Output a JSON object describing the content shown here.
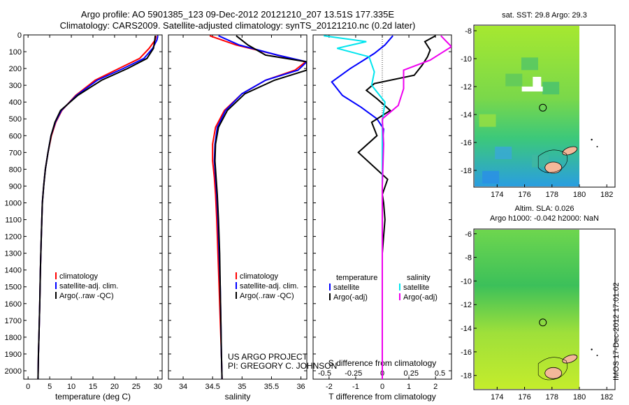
{
  "header": {
    "line1": "Argo profile: AO 5901385_123 09-Dec-2012 20121210_207 13.51S 177.335E",
    "line2": "Climatology: CARS2009. Satellite-adjusted climatology: synTS_20121210.nc (0.2d later)"
  },
  "stamp": "IMOS 17-Dec-2012 17:01:02",
  "project_note": [
    "US ARGO PROJECT",
    "PI: GREGORY C. JOHNSON"
  ],
  "colors": {
    "climatology": "#ff0000",
    "satellite": "#0000ff",
    "argo": "#000000",
    "sal_satellite": "#00e5ee",
    "sal_argo": "#ee00ee"
  },
  "chart_data": [
    {
      "type": "line",
      "xlabel": "temperature (deg C)",
      "ylabel": "",
      "xlim": [
        -1,
        31
      ],
      "ylim": [
        2050,
        0
      ],
      "xticks": [
        0,
        5,
        10,
        15,
        20,
        25,
        30
      ],
      "yticks": [
        0,
        100,
        200,
        300,
        400,
        500,
        600,
        700,
        800,
        900,
        1000,
        1100,
        1200,
        1300,
        1400,
        1500,
        1600,
        1700,
        1800,
        1900,
        2000
      ],
      "legend": [
        "climatology",
        "satellite-adj. clim.",
        "Argo(..raw -QC)"
      ],
      "legend_position": "lower-center",
      "series": [
        {
          "name": "climatology",
          "color": "#ff0000",
          "x": [
            29.6,
            29.4,
            28.0,
            25.8,
            21.0,
            15.5,
            11.0,
            7.8,
            6.4,
            5.4,
            4.6,
            4.0,
            3.6,
            3.3,
            3.05,
            2.85,
            2.7,
            2.6,
            2.5,
            2.4,
            2.3
          ],
          "y": [
            5,
            30,
            80,
            140,
            200,
            270,
            360,
            450,
            520,
            600,
            700,
            800,
            900,
            1000,
            1200,
            1400,
            1600,
            1700,
            1800,
            1900,
            2050
          ]
        },
        {
          "name": "satellite-adj. clim.",
          "color": "#0000ff",
          "x": [
            30.0,
            29.8,
            28.8,
            26.8,
            22.0,
            16.0,
            11.2,
            7.7,
            6.3,
            5.3,
            4.6,
            4.0,
            3.6,
            3.3,
            3.05,
            2.85,
            2.7,
            2.6,
            2.5,
            2.4,
            2.3
          ],
          "y": [
            5,
            30,
            80,
            140,
            200,
            270,
            360,
            450,
            520,
            600,
            700,
            800,
            900,
            1000,
            1200,
            1400,
            1600,
            1700,
            1800,
            1900,
            2050
          ]
        },
        {
          "name": "Argo(..raw -QC)",
          "color": "#000000",
          "x": [
            29.4,
            29.3,
            29.0,
            27.5,
            23.0,
            17.0,
            11.5,
            7.5,
            6.2,
            5.3,
            4.6,
            4.0,
            3.6,
            3.3,
            3.05,
            2.85,
            2.7,
            2.6,
            2.5,
            2.4,
            2.3
          ],
          "y": [
            5,
            30,
            80,
            140,
            200,
            270,
            360,
            450,
            520,
            600,
            700,
            800,
            900,
            1000,
            1200,
            1400,
            1600,
            1700,
            1800,
            1900,
            2050
          ]
        }
      ]
    },
    {
      "type": "line",
      "xlabel": "salinity",
      "xlim": [
        33.75,
        36.1
      ],
      "ylim": [
        2050,
        0
      ],
      "xticks": [
        34,
        34.5,
        35,
        35.5,
        36
      ],
      "legend": [
        "climatology",
        "satellite-adj. clim.",
        "Argo(..raw -QC)"
      ],
      "legend_position": "lower-center",
      "series": [
        {
          "name": "climatology",
          "color": "#ff0000",
          "x": [
            34.45,
            34.9,
            35.6,
            36.08,
            35.9,
            35.4,
            35.0,
            34.7,
            34.55,
            34.5,
            34.5,
            34.53,
            34.55,
            34.57,
            34.59,
            34.61,
            34.63,
            34.65,
            34.66
          ],
          "y": [
            5,
            60,
            120,
            160,
            210,
            270,
            350,
            450,
            550,
            650,
            750,
            850,
            950,
            1100,
            1300,
            1500,
            1700,
            1900,
            2050
          ]
        },
        {
          "name": "satellite-adj. clim.",
          "color": "#0000ff",
          "x": [
            34.6,
            34.95,
            35.6,
            36.1,
            35.95,
            35.4,
            35.0,
            34.72,
            34.58,
            34.54,
            34.53,
            34.55,
            34.57,
            34.59,
            34.61,
            34.63,
            34.64,
            34.65,
            34.66
          ],
          "y": [
            5,
            60,
            120,
            160,
            210,
            270,
            350,
            450,
            550,
            650,
            750,
            850,
            950,
            1100,
            1300,
            1500,
            1700,
            1900,
            2050
          ]
        },
        {
          "name": "Argo(..raw -QC)",
          "color": "#000000",
          "x": [
            34.9,
            35.1,
            35.4,
            36.1,
            36.1,
            35.55,
            35.05,
            34.75,
            34.6,
            34.55,
            34.54,
            34.56,
            34.58,
            34.6,
            34.62,
            34.63,
            34.64,
            34.65,
            34.66
          ],
          "y": [
            5,
            60,
            120,
            160,
            210,
            270,
            350,
            450,
            550,
            650,
            750,
            850,
            950,
            1100,
            1300,
            1500,
            1700,
            1900,
            2050
          ]
        }
      ]
    },
    {
      "type": "line",
      "xlabel": "T difference from climatology",
      "xlabel_top": "S difference from climatology",
      "xlim": [
        -2.6,
        2.6
      ],
      "ylim": [
        2050,
        0
      ],
      "xticks": [
        -2,
        -1,
        0,
        1,
        2
      ],
      "xticks_salinity": [
        -0.5,
        -0.25,
        0,
        0.25,
        0.5
      ],
      "legend": [
        "temperature",
        "satellite",
        "Argo(-adj)",
        "salinity",
        "satellite",
        "Argo(-adj)"
      ],
      "legend_position": "lower-center",
      "series": [
        {
          "name": "satellite",
          "color": "#0000ff",
          "x": [
            0.4,
            0.1,
            -0.3,
            -1.2,
            -1.9,
            -1.5,
            -0.8,
            -0.2,
            0.05,
            0.0,
            0.0,
            0.0,
            0.0,
            0.0,
            0.0,
            0.0
          ],
          "y": [
            5,
            60,
            110,
            200,
            280,
            360,
            430,
            500,
            560,
            650,
            750,
            900,
            1100,
            1400,
            1700,
            2050
          ]
        },
        {
          "name": "Argo(-adj)",
          "color": "#000000",
          "x": [
            2.0,
            1.6,
            1.8,
            1.7,
            1.5,
            1.2,
            -0.3,
            -0.6,
            -0.2,
            0.3,
            -0.4,
            -0.2,
            -0.9,
            0.2,
            0.0,
            0.05,
            0.1,
            0.0,
            0.0,
            0.0
          ],
          "y": [
            5,
            40,
            90,
            130,
            180,
            240,
            290,
            330,
            380,
            450,
            520,
            600,
            700,
            860,
            950,
            1000,
            1100,
            1300,
            1600,
            2050
          ]
        },
        {
          "name": "satellite (salinity)",
          "color": "#00e5ee",
          "x": [
            -2.2,
            -0.6,
            -1.7,
            -0.5,
            -0.3,
            -0.4,
            0.1,
            0.0,
            0.0,
            0.0,
            0.0,
            0.0,
            0.0
          ],
          "y": [
            5,
            40,
            80,
            130,
            220,
            300,
            400,
            520,
            650,
            800,
            1100,
            1600,
            2050
          ]
        },
        {
          "name": "Argo(-adj) (salinity)",
          "color": "#ee00ee",
          "x": [
            2.2,
            2.6,
            1.8,
            0.8,
            0.8,
            0.6,
            0.0,
            0.05,
            0.0,
            0.0
          ],
          "y": [
            5,
            70,
            150,
            210,
            320,
            420,
            500,
            650,
            900,
            2050
          ]
        }
      ]
    },
    {
      "type": "heatmap",
      "title": "sat. SST: 29.8  Argo: 29.3",
      "xlim": [
        172.3,
        182.6
      ],
      "ylim": [
        -19.2,
        -7.6
      ],
      "xticks": [
        174,
        176,
        178,
        180,
        182
      ],
      "yticks": [
        -8,
        -10,
        -12,
        -14,
        -16,
        -18
      ],
      "float_position": {
        "lon": 177.335,
        "lat": -13.51
      }
    },
    {
      "type": "heatmap",
      "title": "Altim. SLA: 0.026",
      "subtitle": "Argo h1000: -0.042  h2000: NaN",
      "xlim": [
        172.3,
        182.6
      ],
      "ylim": [
        -19.2,
        -5.6
      ],
      "xticks": [
        174,
        176,
        178,
        180,
        182
      ],
      "yticks": [
        -6,
        -8,
        -10,
        -12,
        -14,
        -16,
        -18
      ],
      "float_position": {
        "lon": 177.335,
        "lat": -13.51
      }
    }
  ]
}
